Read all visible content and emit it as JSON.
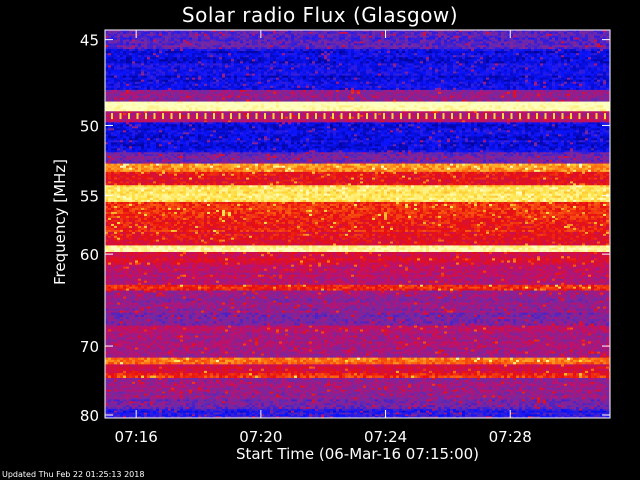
{
  "chart_data": {
    "type": "heatmap",
    "title": "Solar radio Flux (Glasgow)",
    "xlabel": "Start Time (06-Mar-16 07:15:00)",
    "ylabel": "Frequency [MHz]",
    "xlim_minutes": [
      15.0,
      31.2
    ],
    "xticks": [
      {
        "label": "07:16",
        "minute": 16
      },
      {
        "label": "07:20",
        "minute": 20
      },
      {
        "label": "07:24",
        "minute": 24
      },
      {
        "label": "07:28",
        "minute": 28
      }
    ],
    "ylim_mhz": [
      44.5,
      80.5
    ],
    "yticks": [
      {
        "label": "45",
        "mhz": 45
      },
      {
        "label": "50",
        "mhz": 50
      },
      {
        "label": "55",
        "mhz": 55
      },
      {
        "label": "60",
        "mhz": 60
      },
      {
        "label": "70",
        "mhz": 70
      },
      {
        "label": "80",
        "mhz": 80
      }
    ],
    "bands": [
      {
        "from": 44.5,
        "to": 45.5,
        "level": 0.25
      },
      {
        "from": 45.5,
        "to": 47.8,
        "level": 0.12
      },
      {
        "from": 47.8,
        "to": 48.5,
        "level": 0.35
      },
      {
        "from": 48.5,
        "to": 49.1,
        "level": 1.0
      },
      {
        "from": 49.1,
        "to": 49.8,
        "level": 0.4
      },
      {
        "from": 49.8,
        "to": 51.8,
        "level": 0.12
      },
      {
        "from": 51.8,
        "to": 52.6,
        "level": 0.3
      },
      {
        "from": 52.6,
        "to": 53.2,
        "level": 0.75
      },
      {
        "from": 53.2,
        "to": 54.2,
        "level": 0.55
      },
      {
        "from": 54.2,
        "to": 55.5,
        "level": 0.88
      },
      {
        "from": 55.5,
        "to": 58.0,
        "level": 0.6
      },
      {
        "from": 58.0,
        "to": 59.2,
        "level": 0.55
      },
      {
        "from": 59.2,
        "to": 59.8,
        "level": 0.95
      },
      {
        "from": 59.8,
        "to": 61.0,
        "level": 0.5
      },
      {
        "from": 61.0,
        "to": 63.0,
        "level": 0.42
      },
      {
        "from": 63.0,
        "to": 63.6,
        "level": 0.6
      },
      {
        "from": 63.6,
        "to": 66.0,
        "level": 0.35
      },
      {
        "from": 66.0,
        "to": 67.5,
        "level": 0.32
      },
      {
        "from": 67.5,
        "to": 68.2,
        "level": 0.45
      },
      {
        "from": 68.2,
        "to": 71.5,
        "level": 0.38
      },
      {
        "from": 71.5,
        "to": 72.4,
        "level": 0.72
      },
      {
        "from": 72.4,
        "to": 73.6,
        "level": 0.5
      },
      {
        "from": 73.6,
        "to": 74.3,
        "level": 0.62
      },
      {
        "from": 74.3,
        "to": 77.5,
        "level": 0.35
      },
      {
        "from": 77.5,
        "to": 79.0,
        "level": 0.3
      },
      {
        "from": 79.0,
        "to": 80.5,
        "level": 0.18
      }
    ],
    "color_stops": [
      "#000080",
      "#0a14ff",
      "#6e2aa8",
      "#c0106a",
      "#e81010",
      "#ff7010",
      "#ffe040",
      "#ffffc0"
    ],
    "grid": false
  },
  "footer_text": "Updated Thu Feb 22 01:25:13 2018"
}
